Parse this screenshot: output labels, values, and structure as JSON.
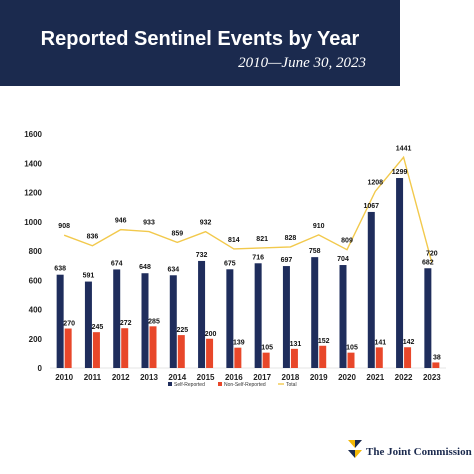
{
  "header": {
    "title": "Reported Sentinel Events by Year",
    "subtitle": "2010—June 30, 2023"
  },
  "colors": {
    "banner": "#1b2a4e",
    "self_reported": "#1f2d5c",
    "non_self_reported": "#e8472a",
    "total": "#f2c94c"
  },
  "chart_data": {
    "type": "bar",
    "categories": [
      "2010",
      "2011",
      "2012",
      "2013",
      "2014",
      "2015",
      "2016",
      "2017",
      "2018",
      "2019",
      "2020",
      "2021",
      "2022",
      "2023"
    ],
    "ylim": [
      0,
      1600
    ],
    "yticks": [
      0,
      200,
      400,
      600,
      800,
      1000,
      1200,
      1400,
      1600
    ],
    "grid": false,
    "legend_position": "bottom",
    "series": [
      {
        "name": "Self-Reported",
        "kind": "bar",
        "values": [
          638,
          591,
          674,
          648,
          634,
          732,
          675,
          716,
          697,
          758,
          704,
          1067,
          1299,
          682
        ]
      },
      {
        "name": "Non-Self-Reported",
        "kind": "bar",
        "values": [
          270,
          245,
          272,
          285,
          225,
          200,
          139,
          105,
          131,
          152,
          105,
          141,
          142,
          38
        ]
      },
      {
        "name": "Total",
        "kind": "line",
        "values": [
          908,
          836,
          946,
          933,
          859,
          932,
          814,
          821,
          828,
          910,
          809,
          1208,
          1441,
          720
        ]
      }
    ]
  },
  "logo": {
    "text": "The Joint Commission",
    "icon": "joint-commission-logo-icon"
  }
}
